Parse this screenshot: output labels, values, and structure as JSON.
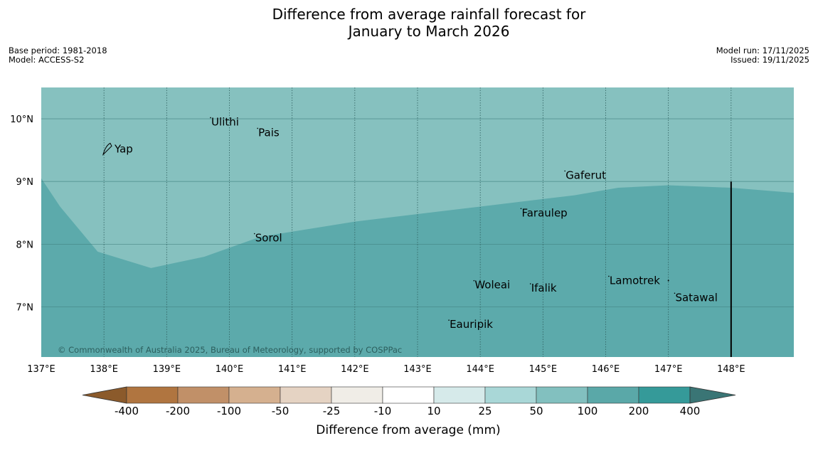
{
  "title": {
    "line1": "Difference from average rainfall forecast for",
    "line2": "January to March 2026"
  },
  "meta": {
    "base_period": "Base period: 1981-2018",
    "model": "Model: ACCESS-S2",
    "model_run": "Model run: 17/11/2025",
    "issued": "Issued: 19/11/2025"
  },
  "map": {
    "lon_range": [
      137,
      149
    ],
    "lat_range": [
      6.2,
      10.5
    ],
    "lon_ticks": [
      {
        "value": 137,
        "label": "137°E"
      },
      {
        "value": 138,
        "label": "138°E"
      },
      {
        "value": 139,
        "label": "139°E"
      },
      {
        "value": 140,
        "label": "140°E"
      },
      {
        "value": 141,
        "label": "141°E"
      },
      {
        "value": 142,
        "label": "142°E"
      },
      {
        "value": 143,
        "label": "143°E"
      },
      {
        "value": 144,
        "label": "144°E"
      },
      {
        "value": 145,
        "label": "145°E"
      },
      {
        "value": 146,
        "label": "146°E"
      },
      {
        "value": 147,
        "label": "147°E"
      },
      {
        "value": 148,
        "label": "148°E"
      }
    ],
    "lat_ticks": [
      {
        "value": 10,
        "label": "10°N"
      },
      {
        "value": 9,
        "label": "9°N"
      },
      {
        "value": 8,
        "label": "8°N"
      },
      {
        "value": 7,
        "label": "7°N"
      }
    ],
    "regions": [
      {
        "category": "50 to 100 mm",
        "color": "#86c1bf"
      },
      {
        "category": "100 to 200 mm",
        "color": "#5caaab",
        "boundary": [
          [
            137.0,
            9.05
          ],
          [
            137.3,
            8.6
          ],
          [
            137.9,
            7.88
          ],
          [
            138.75,
            7.62
          ],
          [
            139.6,
            7.8
          ],
          [
            140.5,
            8.12
          ],
          [
            142.0,
            8.36
          ],
          [
            144.0,
            8.6
          ],
          [
            145.5,
            8.78
          ],
          [
            146.2,
            8.9
          ],
          [
            147.0,
            8.94
          ],
          [
            148.0,
            8.9
          ],
          [
            149.0,
            8.82
          ]
        ]
      }
    ],
    "boundary_lon": 148.0,
    "boundary_lat_top": 9.0,
    "places": [
      {
        "name": "Yap",
        "lon": 138.1,
        "lat": 9.52,
        "type": "island-outline"
      },
      {
        "name": "Ulithi",
        "lon": 139.7,
        "lat": 9.95
      },
      {
        "name": "Pais",
        "lon": 140.45,
        "lat": 9.78
      },
      {
        "name": "Gaferut",
        "lon": 145.35,
        "lat": 9.1
      },
      {
        "name": "Faraulep",
        "lon": 144.65,
        "lat": 8.5
      },
      {
        "name": "Sorol",
        "lon": 140.4,
        "lat": 8.1
      },
      {
        "name": "Woleai",
        "lon": 143.9,
        "lat": 7.35
      },
      {
        "name": "Ifalik",
        "lon": 144.8,
        "lat": 7.3
      },
      {
        "name": "Lamotrek",
        "lon": 146.05,
        "lat": 7.42
      },
      {
        "name": "Satawal",
        "lon": 147.1,
        "lat": 7.15
      },
      {
        "name": "Eauripik",
        "lon": 143.5,
        "lat": 6.72
      }
    ],
    "copyright": "© Commonwealth of Australia 2025, Bureau of Meteorology, supported by COSPPac"
  },
  "legend": {
    "title": "Difference from average (mm)",
    "tick_labels": [
      "-400",
      "-200",
      "-100",
      "-50",
      "-25",
      "-10",
      "10",
      "25",
      "50",
      "100",
      "200",
      "400"
    ],
    "colors": [
      "#b07540",
      "#c19068",
      "#d5b08f",
      "#e5d3c3",
      "#f0ede7",
      "#ffffff",
      "#d6eaea",
      "#a9d7d7",
      "#82c0bf",
      "#5aa8a8",
      "#359a99"
    ],
    "low_arrow_color": "#8b5a2b",
    "high_arrow_color": "#3a7575"
  }
}
